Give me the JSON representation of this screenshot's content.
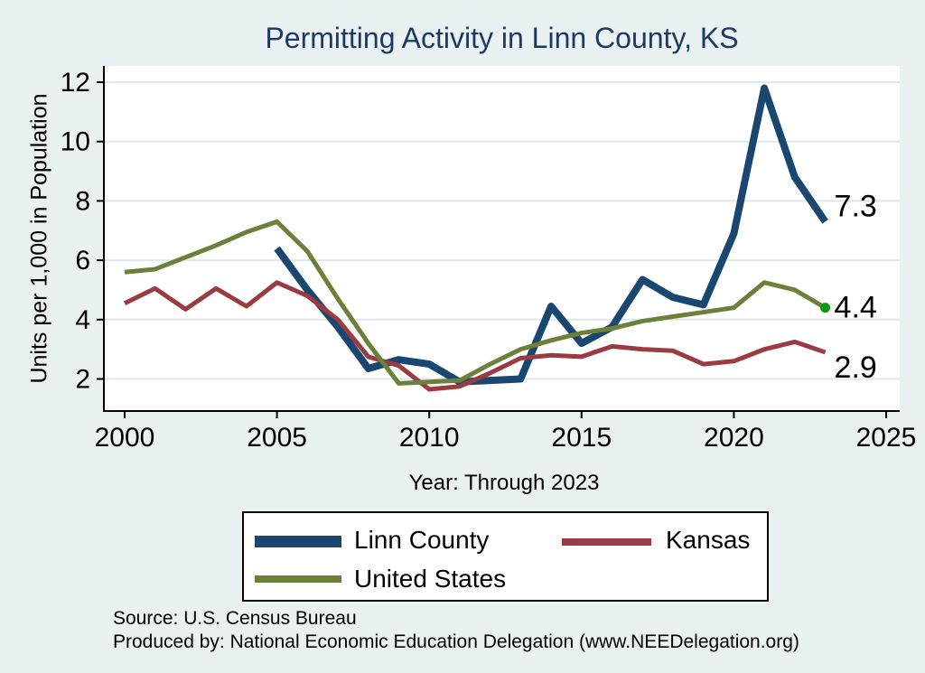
{
  "title": "Permitting Activity in Linn County, KS",
  "colors": {
    "background": "#e9f1f3",
    "plot_background": "#ffffff",
    "gridline": "#dde9f1",
    "axis": "#000000",
    "title_text": "#1e3a63",
    "linn_county": "#1a476f",
    "kansas": "#9a3b42",
    "united_states": "#6b8039",
    "end_dot": "#0f9a10"
  },
  "chart_data": {
    "type": "line",
    "title": "Permitting Activity in Linn County, KS",
    "xlabel": "Year: Through 2023",
    "ylabel": "Units per 1,000 in Population",
    "xlim": [
      2000,
      2025
    ],
    "ylim": [
      2,
      12
    ],
    "x_ticks": [
      2000,
      2005,
      2010,
      2015,
      2020,
      2025
    ],
    "y_ticks": [
      2,
      4,
      6,
      8,
      10,
      12
    ],
    "grid": true,
    "legend_position": "bottom",
    "series": [
      {
        "name": "Linn County",
        "color": "#1a476f",
        "line_width": 8,
        "years": [
          2005,
          2006,
          2007,
          2008,
          2009,
          2010,
          2011,
          2012,
          2013,
          2014,
          2015,
          2016,
          2017,
          2018,
          2019,
          2020,
          2021,
          2022,
          2023
        ],
        "values": [
          6.4,
          5.0,
          3.75,
          2.35,
          2.65,
          2.5,
          1.9,
          1.95,
          2.0,
          4.45,
          3.2,
          3.75,
          5.35,
          4.75,
          4.5,
          6.9,
          11.8,
          8.8,
          7.3
        ]
      },
      {
        "name": "Kansas",
        "color": "#9a3b42",
        "line_width": 5,
        "years": [
          2000,
          2001,
          2002,
          2003,
          2004,
          2005,
          2006,
          2007,
          2008,
          2009,
          2010,
          2011,
          2012,
          2013,
          2014,
          2015,
          2016,
          2017,
          2018,
          2019,
          2020,
          2021,
          2022,
          2023
        ],
        "values": [
          4.55,
          5.05,
          4.35,
          5.05,
          4.45,
          5.25,
          4.8,
          4.0,
          2.75,
          2.45,
          1.65,
          1.75,
          2.2,
          2.7,
          2.8,
          2.75,
          3.1,
          3.0,
          2.95,
          2.5,
          2.6,
          3.0,
          3.25,
          2.9
        ]
      },
      {
        "name": "United States",
        "color": "#6b8039",
        "line_width": 5,
        "end_marker_color": "#0f9a10",
        "years": [
          2000,
          2001,
          2002,
          2003,
          2004,
          2005,
          2006,
          2007,
          2008,
          2009,
          2010,
          2011,
          2012,
          2013,
          2014,
          2015,
          2016,
          2017,
          2018,
          2019,
          2020,
          2021,
          2022,
          2023
        ],
        "values": [
          5.6,
          5.7,
          6.1,
          6.5,
          6.95,
          7.3,
          6.3,
          4.7,
          3.2,
          1.85,
          1.9,
          1.95,
          2.5,
          3.0,
          3.3,
          3.55,
          3.7,
          3.95,
          4.1,
          4.25,
          4.4,
          5.25,
          5.0,
          4.4
        ]
      }
    ],
    "annotations": [
      {
        "text": "7.3",
        "value": 7.3,
        "dy": -6
      },
      {
        "text": "4.4",
        "value": 4.4,
        "dy": 11
      },
      {
        "text": "2.9",
        "value": 2.9,
        "dy": 28
      }
    ]
  },
  "legend": {
    "items": [
      {
        "label": "Linn County",
        "color": "#1a476f"
      },
      {
        "label": "Kansas",
        "color": "#9a3b42"
      },
      {
        "label": "United States",
        "color": "#6b8039"
      }
    ]
  },
  "footer": {
    "source": "Source: U.S. Census Bureau",
    "produced_by": "Produced by: National Economic Education Delegation (www.NEEDelegation.org)"
  }
}
